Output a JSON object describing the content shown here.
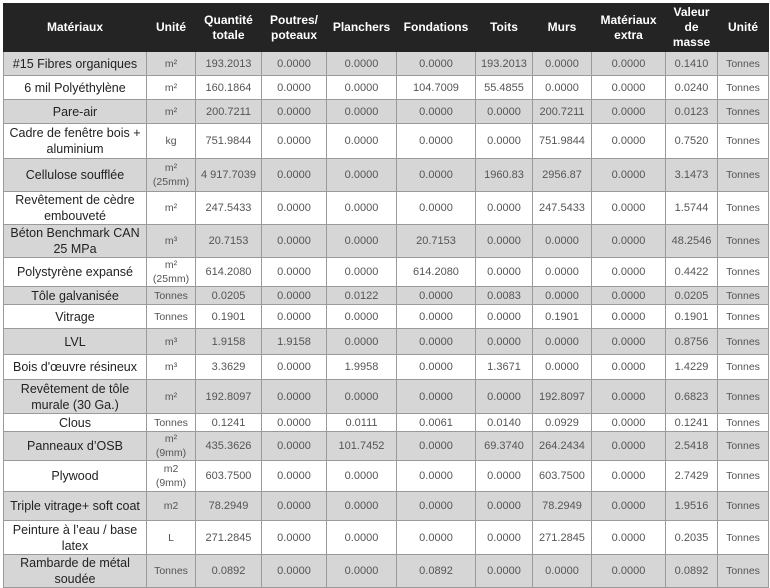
{
  "table": {
    "headers": [
      "Matériaux",
      "Unité",
      "Quantité totale",
      "Poutres/ poteaux",
      "Planchers",
      "Fondations",
      "Toits",
      "Murs",
      "Matériaux extra",
      "Valeur de masse",
      "Unité"
    ],
    "rows": [
      [
        "#15 Fibres organiques",
        "m²",
        "193.2013",
        "0.0000",
        "0.0000",
        "0.0000",
        "193.2013",
        "0.0000",
        "0.0000",
        "0.1410",
        "Tonnes"
      ],
      [
        "6 mil Polyéthylène",
        "m²",
        "160.1864",
        "0.0000",
        "0.0000",
        "104.7009",
        "55.4855",
        "0.0000",
        "0.0000",
        "0.0240",
        "Tonnes"
      ],
      [
        "Pare-air",
        "m²",
        "200.7211",
        "0.0000",
        "0.0000",
        "0.0000",
        "0.0000",
        "200.7211",
        "0.0000",
        "0.0123",
        "Tonnes"
      ],
      [
        "Cadre de fenêtre bois + aluminium",
        "kg",
        "751.9844",
        "0.0000",
        "0.0000",
        "0.0000",
        "0.0000",
        "751.9844",
        "0.0000",
        "0.7520",
        "Tonnes"
      ],
      [
        "Cellulose soufflée",
        "m² (25mm)",
        "4 917.7039",
        "0.0000",
        "0.0000",
        "0.0000",
        "1960.83",
        "2956.87",
        "0.0000",
        "3.1473",
        "Tonnes"
      ],
      [
        "Revêtement de cèdre embouveté",
        "m²",
        "247.5433",
        "0.0000",
        "0.0000",
        "0.0000",
        "0.0000",
        "247.5433",
        "0.0000",
        "1.5744",
        "Tonnes"
      ],
      [
        "Béton Benchmark CAN 25 MPa",
        "m³",
        "20.7153",
        "0.0000",
        "0.0000",
        "20.7153",
        "0.0000",
        "0.0000",
        "0.0000",
        "48.2546",
        "Tonnes"
      ],
      [
        "Polystyrène expansé",
        "m² (25mm)",
        "614.2080",
        "0.0000",
        "0.0000",
        "614.2080",
        "0.0000",
        "0.0000",
        "0.0000",
        "0.4422",
        "Tonnes"
      ],
      [
        "Tôle galvanisée",
        "Tonnes",
        "0.0205",
        "0.0000",
        "0.0122",
        "0.0000",
        "0.0083",
        "0.0000",
        "0.0000",
        "0.0205",
        "Tonnes"
      ],
      [
        "Vitrage",
        "Tonnes",
        "0.1901",
        "0.0000",
        "0.0000",
        "0.0000",
        "0.0000",
        "0.1901",
        "0.0000",
        "0.1901",
        "Tonnes"
      ],
      [
        "LVL",
        "m³",
        "1.9158",
        "1.9158",
        "0.0000",
        "0.0000",
        "0.0000",
        "0.0000",
        "0.0000",
        "0.8756",
        "Tonnes"
      ],
      [
        "Bois d'œuvre résineux",
        "m³",
        "3.3629",
        "0.0000",
        "1.9958",
        "0.0000",
        "1.3671",
        "0.0000",
        "0.0000",
        "1.4229",
        "Tonnes"
      ],
      [
        "Revêtement de tôle murale (30 Ga.)",
        "m²",
        "192.8097",
        "0.0000",
        "0.0000",
        "0.0000",
        "0.0000",
        "192.8097",
        "0.0000",
        "0.6823",
        "Tonnes"
      ],
      [
        "Clous",
        "Tonnes",
        "0.1241",
        "0.0000",
        "0.0111",
        "0.0061",
        "0.0140",
        "0.0929",
        "0.0000",
        "0.1241",
        "Tonnes"
      ],
      [
        "Panneaux d’OSB",
        "m² (9mm)",
        "435.3626",
        "0.0000",
        "101.7452",
        "0.0000",
        "69.3740",
        "264.2434",
        "0.0000",
        "2.5418",
        "Tonnes"
      ],
      [
        "Plywood",
        "m2 (9mm)",
        "603.7500",
        "0.0000",
        "0.0000",
        "0.0000",
        "0.0000",
        "603.7500",
        "0.0000",
        "2.7429",
        "Tonnes"
      ],
      [
        "Triple vitrage+ soft coat",
        "m2",
        "78.2949",
        "0.0000",
        "0.0000",
        "0.0000",
        "0.0000",
        "78.2949",
        "0.0000",
        "1.9516",
        "Tonnes"
      ],
      [
        "Peinture à l’eau / base latex",
        "L",
        "271.2845",
        "0.0000",
        "0.0000",
        "0.0000",
        "0.0000",
        "271.2845",
        "0.0000",
        "0.2035",
        "Tonnes"
      ],
      [
        "Rambarde de métal soudée",
        "Tonnes",
        "0.0892",
        "0.0000",
        "0.0000",
        "0.0892",
        "0.0000",
        "0.0000",
        "0.0000",
        "0.0892",
        "Tonnes"
      ]
    ]
  },
  "colors": {
    "header_bg": "#242424",
    "row_alt": "#d6d6d6",
    "row": "#ffffff"
  }
}
